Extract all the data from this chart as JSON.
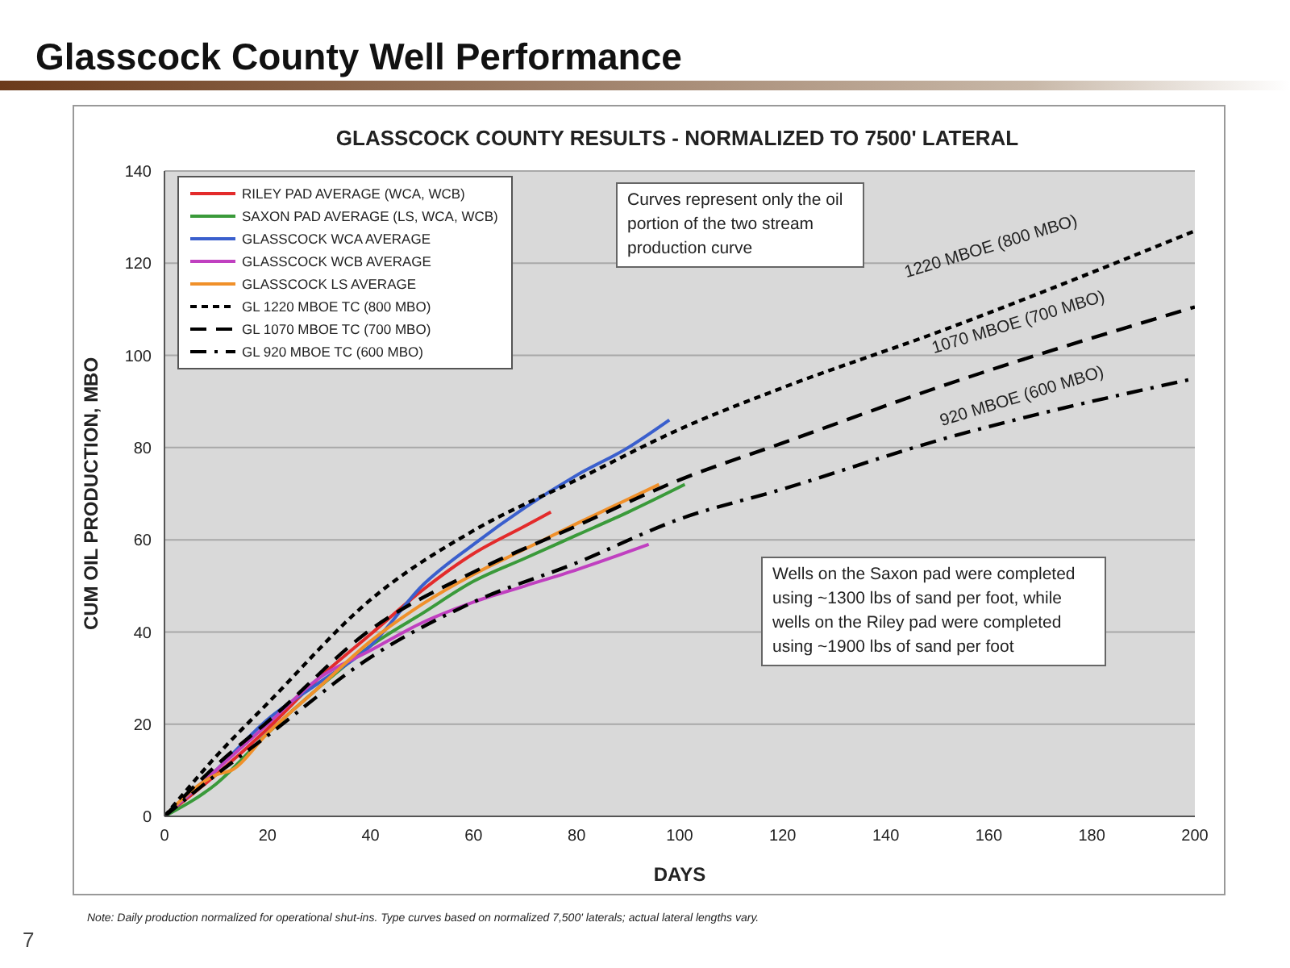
{
  "chart_data": {
    "type": "line",
    "title": "Glasscock County Well Performance",
    "subtitle": "GLASSCOCK COUNTY RESULTS - NORMALIZED TO 7500' LATERAL",
    "xlabel": "DAYS",
    "ylabel": "CUM OIL PRODUCTION, MBO",
    "xlim": [
      0,
      200
    ],
    "xticks": [
      0,
      20,
      40,
      60,
      80,
      100,
      120,
      140,
      160,
      180,
      200
    ],
    "ylim": [
      0,
      140
    ],
    "yticks": [
      0,
      20,
      40,
      60,
      80,
      100,
      120,
      140
    ],
    "grid": "y",
    "legend": "top left",
    "marker": "none",
    "series": [
      {
        "name": "RILEY PAD AVERAGE (WCA, WCB)",
        "color": "#e32b2b",
        "line_style": "solid",
        "x": [
          0,
          10,
          20,
          30,
          40,
          50,
          60,
          70,
          75
        ],
        "values": [
          0,
          9,
          19,
          30,
          39.5,
          49,
          57,
          63,
          66
        ]
      },
      {
        "name": "SAXON PAD AVERAGE (LS, WCA, WCB)",
        "color": "#3a9a3a",
        "line_style": "solid",
        "x": [
          0,
          10,
          20,
          30,
          40,
          50,
          60,
          70,
          80,
          90,
          101
        ],
        "values": [
          0,
          7,
          18,
          28,
          37,
          44,
          51,
          56,
          61,
          66,
          72
        ]
      },
      {
        "name": "GLASSCOCK WCA AVERAGE",
        "color": "#3a5fcd",
        "line_style": "solid",
        "x": [
          0,
          10,
          20,
          30,
          40,
          50,
          60,
          70,
          80,
          90,
          98
        ],
        "values": [
          0,
          10,
          21,
          29,
          37,
          50,
          59,
          67,
          74,
          80,
          86
        ]
      },
      {
        "name": "GLASSCOCK WCB AVERAGE",
        "color": "#c040c0",
        "line_style": "solid",
        "x": [
          0,
          10,
          20,
          30,
          40,
          50,
          60,
          70,
          80,
          94
        ],
        "values": [
          0,
          10,
          20,
          30,
          36,
          42,
          46.5,
          50,
          53.5,
          59
        ]
      },
      {
        "name": "GLASSCOCK LS AVERAGE",
        "color": "#f0902a",
        "line_style": "solid",
        "x": [
          0,
          10,
          13,
          20,
          30,
          40,
          50,
          60,
          70,
          80,
          96
        ],
        "values": [
          0,
          9,
          10,
          18,
          28,
          38,
          46,
          52.5,
          58,
          63.5,
          72
        ]
      },
      {
        "name": "GL 1220 MBOE TC (800 MBO)",
        "color": "#000000",
        "line_style": "dotted",
        "x": [
          0,
          10,
          20,
          40,
          60,
          80,
          100,
          120,
          150,
          200
        ],
        "values": [
          0,
          13,
          24.5,
          47,
          62,
          73,
          84,
          93,
          105,
          127
        ]
      },
      {
        "name": "GL 1070 MBOE TC (700 MBO)",
        "color": "#000000",
        "line_style": "dashed",
        "x": [
          0,
          10,
          20,
          40,
          60,
          80,
          100,
          120,
          150,
          200
        ],
        "values": [
          0,
          11,
          20.5,
          40.5,
          53,
          63,
          73,
          81,
          93,
          110.5
        ]
      },
      {
        "name": "GL 920 MBOE TC (600 MBO)",
        "color": "#000000",
        "line_style": "dashdot",
        "x": [
          0,
          10,
          20,
          40,
          60,
          80,
          100,
          120,
          150,
          200
        ],
        "values": [
          0,
          9,
          17.5,
          34.5,
          46.5,
          55,
          64.5,
          71,
          81.5,
          95
        ]
      }
    ],
    "annotations": [
      "Curves represent only the oil portion of the two stream production curve",
      "Wells on the Saxon pad were completed using ~1300 lbs of sand per foot, while wells on the Riley pad were completed using ~1900 lbs of sand per foot",
      "Note: Daily production normalized for operational shut-ins. Type curves based on normalized 7,500' laterals; actual lateral lengths vary.",
      "7",
      "1220 MBOE (800 MBO)",
      "1070 MBOE (700 MBO)",
      "920 MBOE (600 MBO)"
    ]
  }
}
